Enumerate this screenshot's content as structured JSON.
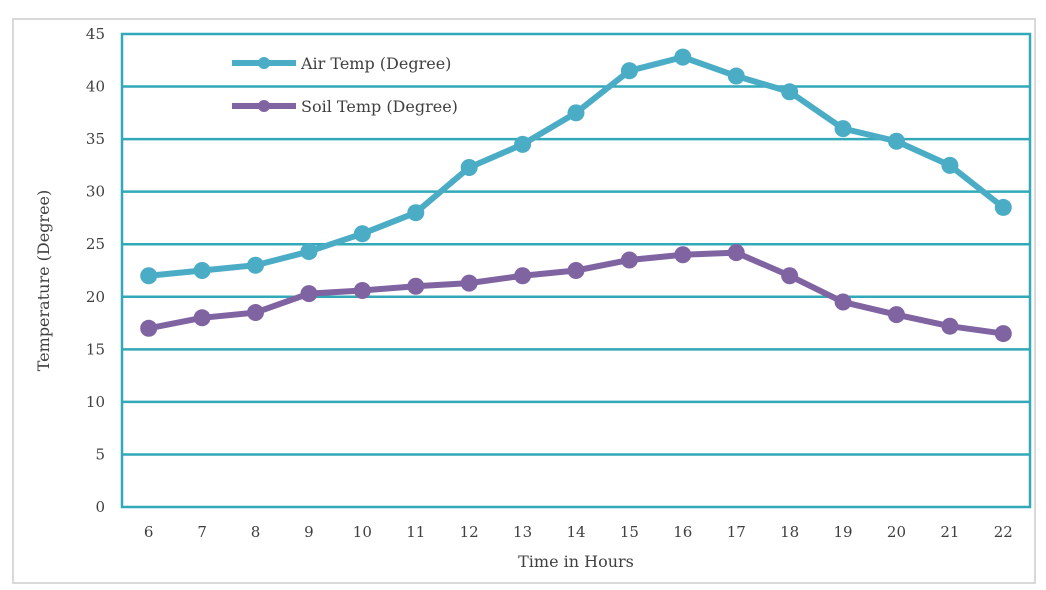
{
  "chart_data": {
    "type": "line",
    "title": "",
    "xlabel": "Time in Hours",
    "ylabel": "Temperature (Degree)",
    "x": [
      6,
      7,
      8,
      9,
      10,
      11,
      12,
      13,
      14,
      15,
      16,
      17,
      18,
      19,
      20,
      21,
      22
    ],
    "ylim": [
      0,
      45
    ],
    "ytick_step": 5,
    "grid": true,
    "legend_position": "top-left",
    "series": [
      {
        "name": "Air Temp (Degree)",
        "color": "#4bacc6",
        "values": [
          22,
          22.5,
          23,
          24.3,
          26,
          28,
          32.3,
          34.5,
          37.5,
          41.5,
          42.8,
          41,
          39.5,
          36,
          34.8,
          32.5,
          28.5
        ]
      },
      {
        "name": "Soil Temp (Degree)",
        "color": "#8064a2",
        "values": [
          17,
          18,
          18.5,
          20.3,
          20.6,
          21,
          21.3,
          22,
          22.5,
          23.5,
          24,
          24.2,
          22,
          19.5,
          18.3,
          17.2,
          16.5
        ]
      }
    ],
    "plot_border_color": "#31a9b8",
    "gridline_color": "#31a9b8"
  }
}
